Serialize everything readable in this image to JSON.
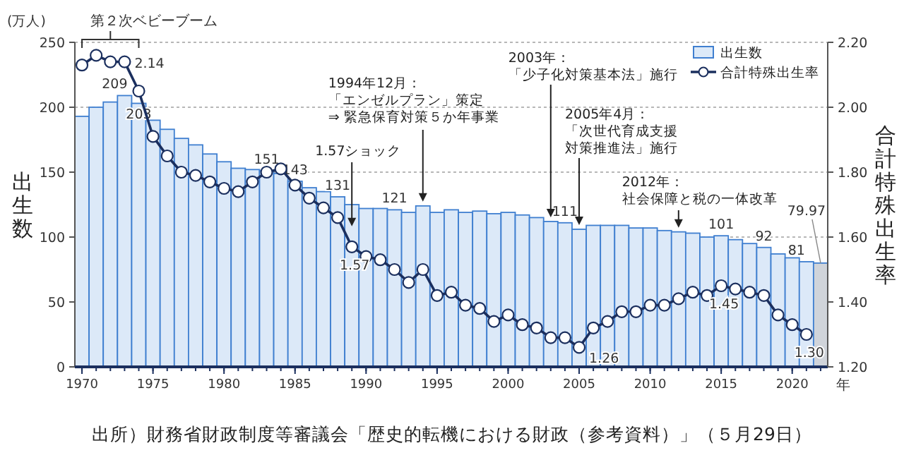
{
  "chart_data": {
    "type": "bar",
    "x": [
      1970,
      1971,
      1972,
      1973,
      1974,
      1975,
      1976,
      1977,
      1978,
      1979,
      1980,
      1981,
      1982,
      1983,
      1984,
      1985,
      1986,
      1987,
      1988,
      1989,
      1990,
      1991,
      1992,
      1993,
      1994,
      1995,
      1996,
      1997,
      1998,
      1999,
      2000,
      2001,
      2002,
      2003,
      2004,
      2005,
      2006,
      2007,
      2008,
      2009,
      2010,
      2011,
      2012,
      2013,
      2014,
      2015,
      2016,
      2017,
      2018,
      2019,
      2020,
      2021,
      2022
    ],
    "xlim": [
      1969.5,
      2022.5
    ],
    "xticks": [
      1970,
      1975,
      1980,
      1985,
      1990,
      1995,
      2000,
      2005,
      2010,
      2015,
      2020
    ],
    "xlabel": "年",
    "ylabel": "出生数",
    "y2label": "合計特殊出生率",
    "ylim": [
      0,
      250
    ],
    "yticks": [
      0,
      50,
      100,
      150,
      200,
      250
    ],
    "y2lim": [
      1.2,
      2.2
    ],
    "y2ticks": [
      {
        "value": 1.2,
        "label": "1.20"
      },
      {
        "value": 1.4,
        "label": "1.40"
      },
      {
        "value": 1.6,
        "label": "1.60"
      },
      {
        "value": 1.8,
        "label": "1.80"
      },
      {
        "value": 2.0,
        "label": "2.00"
      },
      {
        "value": 2.2,
        "label": "2.20"
      }
    ],
    "grid": "y",
    "legend": "top right",
    "annotations": [
      "(万人)",
      "第２次ベビーブーム",
      {
        "text": "1.57ショック",
        "x": 1989,
        "y": 105
      },
      {
        "text": "1994年12月：「エンゼルプラン」策定⇒ 緊急保育対策５か年事業",
        "x": 1994,
        "y": 124
      },
      {
        "text": "2003年：「少子化対策基本法」施行",
        "x": 2003,
        "y": 112
      },
      {
        "text": "2005年4月：「次世代育成支援対策推進法」施行",
        "x": 2005,
        "y": 106
      },
      {
        "text": "2012年：社会保障と税の一体改革",
        "x": 2012,
        "y": 104
      },
      "出所）財務省財政制度等審議会「歴史的転機における財政（参考資料）」（５月29日）"
    ],
    "series": [
      {
        "name": "出生数",
        "color": "#dce9f8",
        "colors": [
          "#dce9f8",
          "#dce9f8",
          "#dce9f8",
          "#dce9f8",
          "#dce9f8",
          "#dce9f8",
          "#dce9f8",
          "#dce9f8",
          "#dce9f8",
          "#dce9f8",
          "#dce9f8",
          "#dce9f8",
          "#dce9f8",
          "#dce9f8",
          "#dce9f8",
          "#dce9f8",
          "#dce9f8",
          "#dce9f8",
          "#dce9f8",
          "#dce9f8",
          "#dce9f8",
          "#dce9f8",
          "#dce9f8",
          "#dce9f8",
          "#dce9f8",
          "#dce9f8",
          "#dce9f8",
          "#dce9f8",
          "#dce9f8",
          "#dce9f8",
          "#dce9f8",
          "#dce9f8",
          "#dce9f8",
          "#dce9f8",
          "#dce9f8",
          "#dce9f8",
          "#dce9f8",
          "#dce9f8",
          "#dce9f8",
          "#dce9f8",
          "#dce9f8",
          "#dce9f8",
          "#dce9f8",
          "#dce9f8",
          "#dce9f8",
          "#dce9f8",
          "#dce9f8",
          "#dce9f8",
          "#dce9f8",
          "#dce9f8",
          "#dce9f8",
          "#dce9f8",
          "#d0d4da"
        ],
        "values": [
          193,
          200,
          204,
          209,
          203,
          190,
          183,
          176,
          171,
          164,
          158,
          153,
          152,
          151,
          149,
          143,
          138,
          135,
          131,
          125,
          122,
          122,
          121,
          119,
          124,
          119,
          121,
          119,
          120,
          118,
          119,
          117,
          115,
          112,
          111,
          106,
          109,
          109,
          109,
          107,
          107,
          105,
          104,
          103,
          100,
          101,
          98,
          95,
          92,
          87,
          84,
          81,
          79.97
        ],
        "value_labels": [
          null,
          null,
          null,
          "209",
          "203",
          null,
          null,
          null,
          null,
          null,
          null,
          null,
          null,
          "151",
          null,
          "143",
          null,
          null,
          "131",
          null,
          null,
          null,
          "121",
          null,
          null,
          null,
          null,
          null,
          null,
          null,
          null,
          null,
          null,
          null,
          "111",
          null,
          null,
          null,
          null,
          null,
          null,
          null,
          null,
          null,
          null,
          "101",
          null,
          null,
          "92",
          null,
          null,
          "81",
          "79.97"
        ]
      },
      {
        "name": "合計特殊出生率",
        "type": "line",
        "axis": "y2",
        "color": "#1b2f5e",
        "marker": "circle",
        "values": [
          2.13,
          2.16,
          2.14,
          2.14,
          2.05,
          1.91,
          1.85,
          1.8,
          1.79,
          1.77,
          1.75,
          1.74,
          1.77,
          1.8,
          1.81,
          1.76,
          1.72,
          1.69,
          1.66,
          1.57,
          1.54,
          1.53,
          1.5,
          1.46,
          1.5,
          1.42,
          1.43,
          1.39,
          1.38,
          1.34,
          1.36,
          1.33,
          1.32,
          1.29,
          1.29,
          1.26,
          1.32,
          1.34,
          1.37,
          1.37,
          1.39,
          1.39,
          1.41,
          1.43,
          1.42,
          1.45,
          1.44,
          1.43,
          1.42,
          1.36,
          1.33,
          1.3,
          null
        ],
        "value_labels": [
          null,
          null,
          null,
          "2.14",
          null,
          null,
          null,
          null,
          null,
          null,
          null,
          null,
          null,
          null,
          null,
          null,
          null,
          null,
          null,
          "1.57",
          null,
          null,
          null,
          null,
          null,
          null,
          null,
          null,
          null,
          null,
          null,
          null,
          null,
          null,
          null,
          "1.26",
          null,
          null,
          null,
          null,
          null,
          null,
          null,
          null,
          null,
          "1.45",
          null,
          null,
          null,
          null,
          null,
          "1.30",
          null
        ]
      }
    ]
  }
}
